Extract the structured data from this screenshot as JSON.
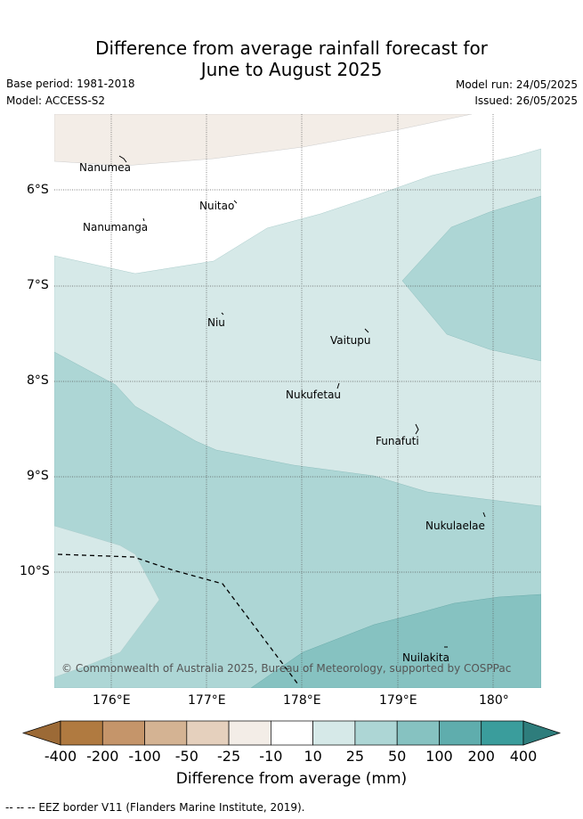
{
  "title_line1": "Difference from average rainfall forecast for",
  "title_line2": "June to August 2025",
  "base_period": "Base period: 1981-2018",
  "model": "Model: ACCESS-S2",
  "model_run": "Model run: 24/05/2025",
  "issued": "Issued: 26/05/2025",
  "copyright": "© Commonwealth of Australia 2025, Bureau of Meteorology, supported by COSPPac",
  "y_ticks": [
    "6°S",
    "7°S",
    "8°S",
    "9°S",
    "10°S"
  ],
  "x_ticks": [
    "176°E",
    "177°E",
    "178°E",
    "179°E",
    "180°"
  ],
  "places": [
    "Nanumea",
    "Nuitao",
    "Nanumanga",
    "Niu",
    "Vaitupu",
    "Nukufetau",
    "Funafuti",
    "Nukulaelae",
    "Nuilakita"
  ],
  "colorbar": {
    "labels": [
      "-400",
      "-200",
      "-100",
      "-50",
      "-25",
      "-10",
      "10",
      "25",
      "50",
      "100",
      "200",
      "400"
    ],
    "colors": [
      "#b07a40",
      "#c5956a",
      "#d4b393",
      "#e5d0bd",
      "#f3ede7",
      "#ffffff",
      "#d6e9e8",
      "#add6d5",
      "#86c2c1",
      "#5fadad",
      "#3a9d9c"
    ],
    "end_low": "#9c6a36",
    "end_high": "#2e7d7c",
    "title": "Difference from average (mm)"
  },
  "footer": "--  --  -- EEZ border V11 (Flanders Marine Institute, 2019)."
}
